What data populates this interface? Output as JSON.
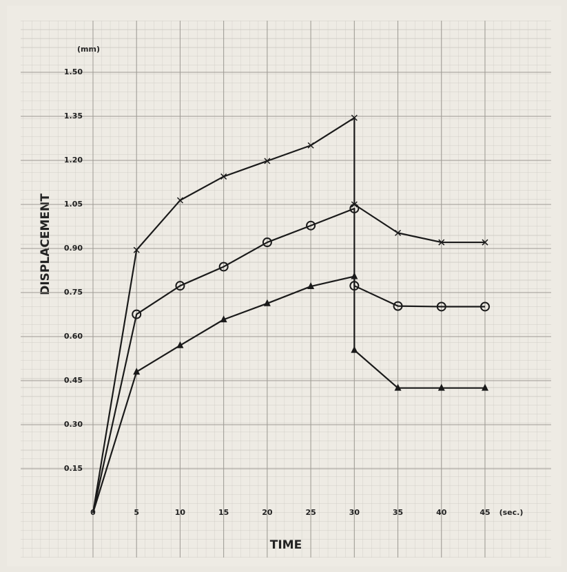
{
  "chart_data": {
    "type": "line",
    "x_label": "TIME",
    "x_unit": "(sec.)",
    "y_label": "DISPLACEMENT",
    "y_unit": "(mm)",
    "x": [
      0,
      5,
      10,
      15,
      20,
      25,
      30,
      30,
      35,
      40,
      45
    ],
    "series": [
      {
        "marker": "cross",
        "color": "#1a1a1a",
        "values": [
          0,
          0.895,
          1.064,
          1.145,
          1.198,
          1.251,
          1.345,
          1.05,
          0.953,
          0.921,
          0.921
        ]
      },
      {
        "marker": "circle",
        "color": "#1a1a1a",
        "values": [
          0,
          0.676,
          0.773,
          0.838,
          0.921,
          0.978,
          1.036,
          0.773,
          0.704,
          0.702,
          0.702
        ]
      },
      {
        "marker": "triangle",
        "color": "#1a1a1a",
        "values": [
          0,
          0.48,
          0.57,
          0.658,
          0.713,
          0.771,
          0.805,
          0.554,
          0.425,
          0.425,
          0.425
        ]
      }
    ],
    "xlim": [
      0,
      45
    ],
    "ylim": [
      0,
      1.5
    ],
    "xticks": [
      0,
      5,
      10,
      15,
      20,
      25,
      30,
      35,
      40,
      45
    ],
    "yticks": [
      0.15,
      {
        "value": 0.3,
        "label": "0.30"
      },
      0.45,
      {
        "value": 0.6,
        "label": "0.60"
      },
      0.75,
      {
        "value": 0.9,
        "label": "0.90"
      },
      1.05,
      {
        "value": 1.2,
        "label": "1.20"
      },
      1.35,
      {
        "value": 1.5,
        "label": "1.50"
      }
    ],
    "grid": true
  }
}
